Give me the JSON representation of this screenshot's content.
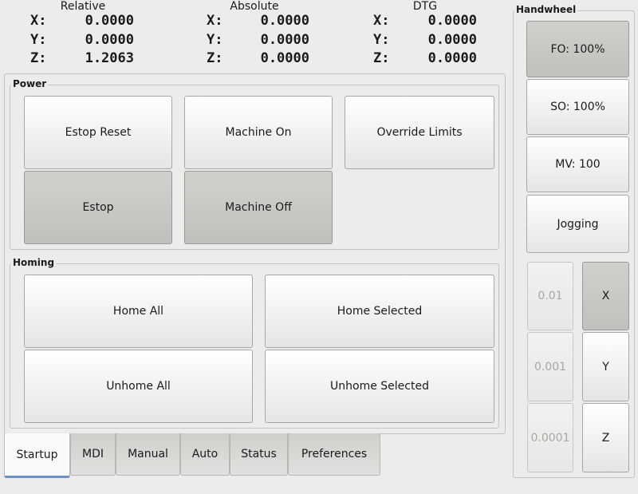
{
  "dro": {
    "columns": [
      {
        "title": "Relative",
        "rows": [
          {
            "axis": "X:",
            "value": "0.0000"
          },
          {
            "axis": "Y:",
            "value": "0.0000"
          },
          {
            "axis": "Z:",
            "value": "1.2063"
          }
        ]
      },
      {
        "title": "Absolute",
        "rows": [
          {
            "axis": "X:",
            "value": "0.0000"
          },
          {
            "axis": "Y:",
            "value": "0.0000"
          },
          {
            "axis": "Z:",
            "value": "0.0000"
          }
        ]
      },
      {
        "title": "DTG",
        "rows": [
          {
            "axis": "X:",
            "value": "0.0000"
          },
          {
            "axis": "Y:",
            "value": "0.0000"
          },
          {
            "axis": "Z:",
            "value": "0.0000"
          }
        ]
      }
    ]
  },
  "power": {
    "title": "Power",
    "estop_reset": "Estop Reset",
    "machine_on": "Machine On",
    "override_limits": "Override Limits",
    "estop": "Estop",
    "machine_off": "Machine Off"
  },
  "homing": {
    "title": "Homing",
    "home_all": "Home All",
    "home_selected": "Home Selected",
    "unhome_all": "Unhome All",
    "unhome_selected": "Unhome Selected"
  },
  "tabs": [
    "Startup",
    "MDI",
    "Manual",
    "Auto",
    "Status",
    "Preferences"
  ],
  "active_tab": "Startup",
  "handwheel": {
    "title": "Handwheel",
    "fo": "FO: 100%",
    "so": "SO: 100%",
    "mv": "MV: 100",
    "jogging": "Jogging",
    "increments": [
      "0.01",
      "0.001",
      "0.0001"
    ],
    "axes": [
      "X",
      "Y",
      "Z"
    ],
    "selected_axis": "X"
  }
}
